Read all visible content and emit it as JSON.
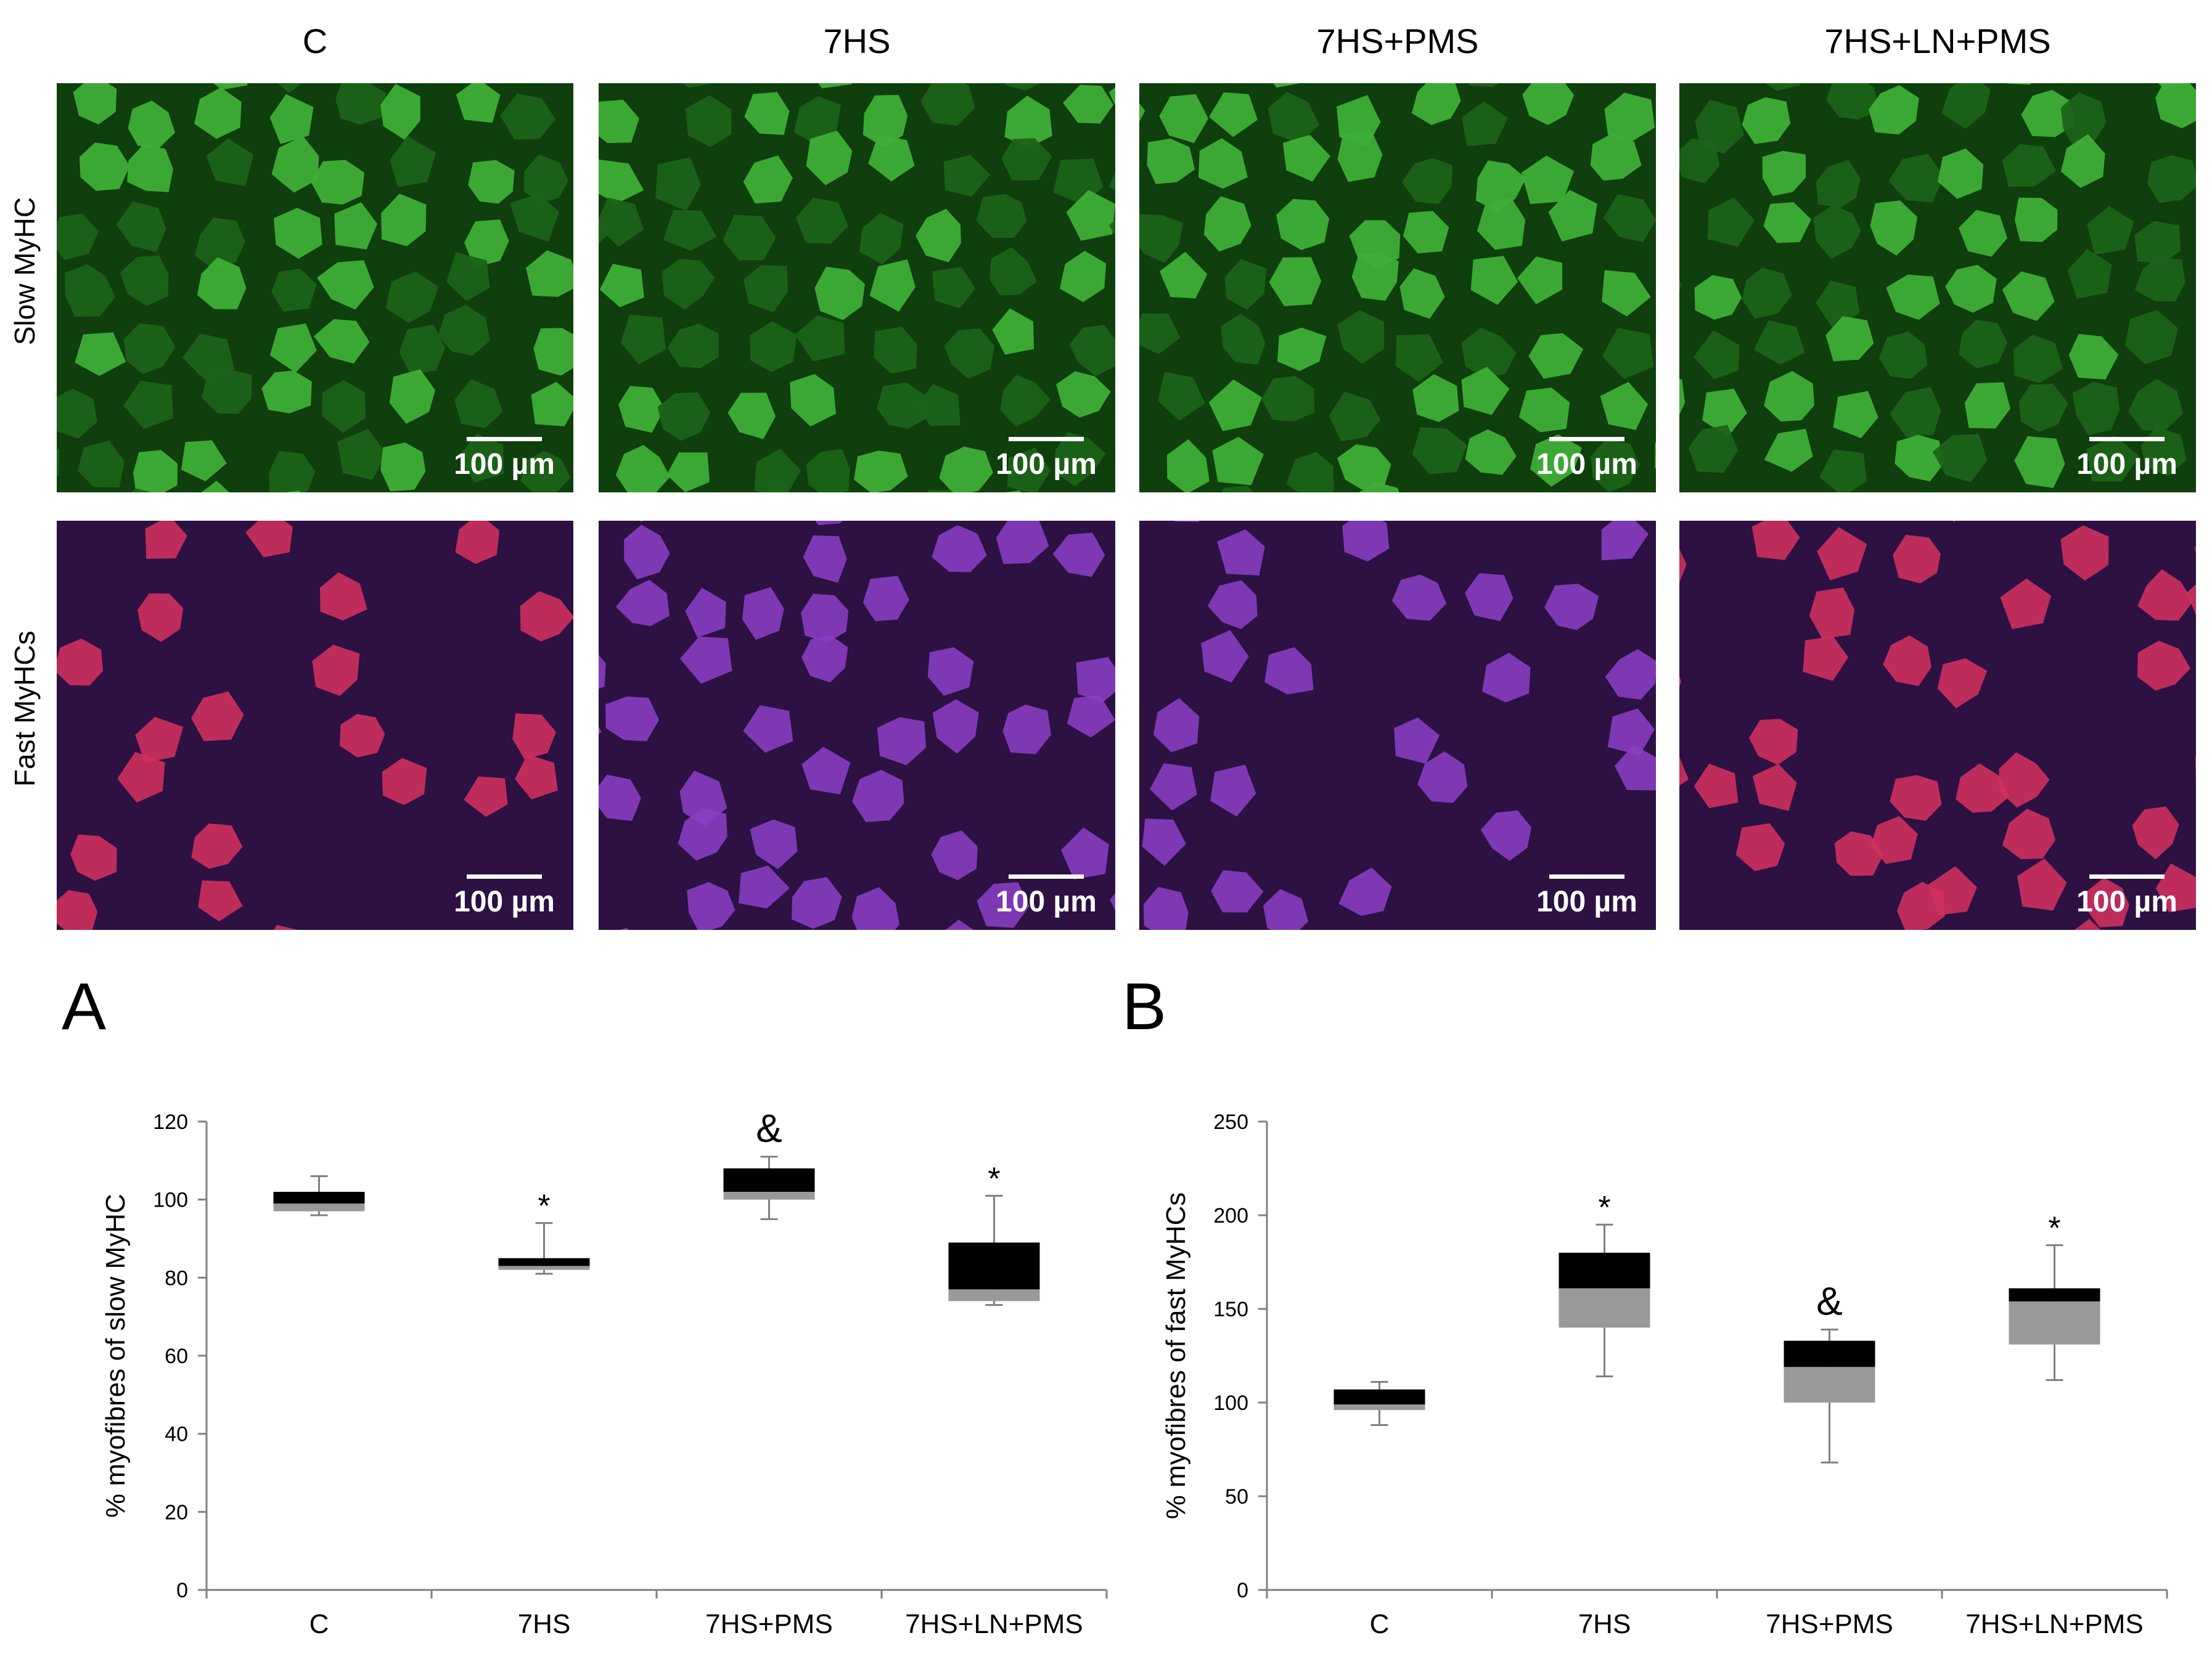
{
  "columns": [
    "C",
    "7HS",
    "7HS+PMS",
    "7HS+LN+PMS"
  ],
  "rows": [
    "Slow MyHC",
    "Fast MyHCs"
  ],
  "scale_bar_label": "100 µm",
  "colors": {
    "slow_bg": "#0f3f0c",
    "slow_fiber": "#3fae37",
    "slow_dark_fiber": "#1c6218",
    "fast_bg": "#2c1142",
    "fast_fiber_red": "#d1305f",
    "fast_fiber_violet": "#8a3dc4",
    "box_upper": "#000000",
    "box_lower": "#999999",
    "whisker": "#808080"
  },
  "panel_letters": [
    "A",
    "B"
  ],
  "chart_data": [
    {
      "type": "box",
      "panel": "A",
      "ylabel": "% myofibres of slow MyHC",
      "xlabel": "",
      "categories": [
        "C",
        "7HS",
        "7HS+PMS",
        "7HS+LN+PMS"
      ],
      "ylim": [
        0,
        120
      ],
      "yticks": [
        0,
        20,
        40,
        60,
        80,
        100,
        120
      ],
      "grid": false,
      "boxes": [
        {
          "min": 96,
          "q1": 97,
          "median": 99,
          "q3": 102,
          "max": 106,
          "annotation": ""
        },
        {
          "min": 81,
          "q1": 82,
          "median": 83,
          "q3": 85,
          "max": 94,
          "annotation": "*"
        },
        {
          "min": 95,
          "q1": 100,
          "median": 102,
          "q3": 108,
          "max": 111,
          "annotation": "&"
        },
        {
          "min": 73,
          "q1": 74,
          "median": 77,
          "q3": 89,
          "max": 101,
          "annotation": "*"
        }
      ]
    },
    {
      "type": "box",
      "panel": "B",
      "ylabel": "% myofibres of fast MyHCs",
      "xlabel": "",
      "categories": [
        "C",
        "7HS",
        "7HS+PMS",
        "7HS+LN+PMS"
      ],
      "ylim": [
        0,
        250
      ],
      "yticks": [
        0,
        50,
        100,
        150,
        200,
        250
      ],
      "grid": false,
      "boxes": [
        {
          "min": 88,
          "q1": 96,
          "median": 99,
          "q3": 107,
          "max": 111,
          "annotation": ""
        },
        {
          "min": 114,
          "q1": 140,
          "median": 161,
          "q3": 180,
          "max": 195,
          "annotation": "*"
        },
        {
          "min": 68,
          "q1": 100,
          "median": 119,
          "q3": 133,
          "max": 139,
          "annotation": "&"
        },
        {
          "min": 112,
          "q1": 131,
          "median": 154,
          "q3": 161,
          "max": 184,
          "annotation": "*"
        }
      ]
    }
  ]
}
